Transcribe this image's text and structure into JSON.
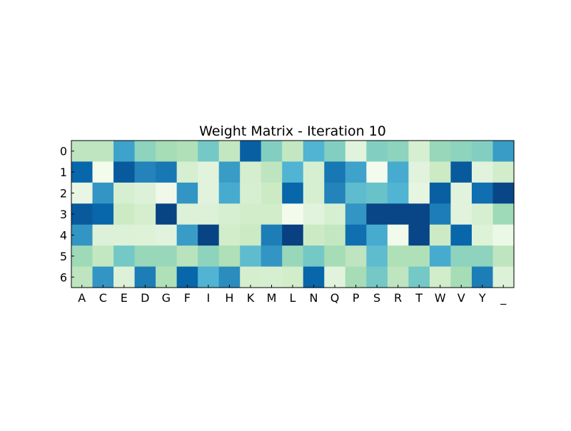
{
  "chart_data": {
    "type": "heatmap",
    "title": "Weight Matrix - Iteration 10",
    "xlabel": "",
    "ylabel": "",
    "x_tick_labels": [
      "A",
      "C",
      "E",
      "D",
      "G",
      "F",
      "I",
      "H",
      "K",
      "M",
      "L",
      "N",
      "Q",
      "P",
      "S",
      "R",
      "T",
      "W",
      "V",
      "Y",
      "_"
    ],
    "y_tick_labels": [
      "0",
      "1",
      "2",
      "3",
      "4",
      "5",
      "6"
    ],
    "colormap": "GnBu",
    "colormap_stops": [
      "#f7fcf0",
      "#e0f3db",
      "#ccebc5",
      "#a8ddb5",
      "#7bccc4",
      "#4eb3d3",
      "#2b8cbe",
      "#0868ac",
      "#084081"
    ],
    "value_range": [
      0,
      1
    ],
    "grid": false,
    "legend": "none",
    "values": [
      [
        0.3,
        0.3,
        0.68,
        0.45,
        0.38,
        0.35,
        0.52,
        0.28,
        0.9,
        0.48,
        0.28,
        0.62,
        0.48,
        0.12,
        0.48,
        0.45,
        0.18,
        0.42,
        0.45,
        0.48,
        0.7
      ],
      [
        0.88,
        0.02,
        0.92,
        0.78,
        0.82,
        0.18,
        0.12,
        0.7,
        0.2,
        0.3,
        0.62,
        0.18,
        0.82,
        0.68,
        0.02,
        0.65,
        0.12,
        0.25,
        0.92,
        0.12,
        0.22
      ],
      [
        0.08,
        0.72,
        0.18,
        0.15,
        0.04,
        0.72,
        0.12,
        0.65,
        0.18,
        0.25,
        0.88,
        0.18,
        0.78,
        0.58,
        0.55,
        0.62,
        0.1,
        0.9,
        0.12,
        0.85,
        0.98
      ],
      [
        0.92,
        0.88,
        0.25,
        0.2,
        0.99,
        0.15,
        0.15,
        0.18,
        0.22,
        0.22,
        0.02,
        0.12,
        0.18,
        0.72,
        0.98,
        0.98,
        0.98,
        0.8,
        0.12,
        0.18,
        0.4
      ],
      [
        0.72,
        0.15,
        0.15,
        0.14,
        0.12,
        0.7,
        0.99,
        0.22,
        0.25,
        0.8,
        1.0,
        0.25,
        0.28,
        0.85,
        0.65,
        0.03,
        0.98,
        0.25,
        0.88,
        0.14,
        0.06
      ],
      [
        0.4,
        0.28,
        0.52,
        0.42,
        0.42,
        0.32,
        0.45,
        0.35,
        0.58,
        0.72,
        0.42,
        0.52,
        0.38,
        0.3,
        0.58,
        0.35,
        0.35,
        0.65,
        0.45,
        0.45,
        0.3
      ],
      [
        0.3,
        0.72,
        0.15,
        0.8,
        0.35,
        0.88,
        0.62,
        0.75,
        0.2,
        0.18,
        0.22,
        0.88,
        0.12,
        0.38,
        0.52,
        0.3,
        0.52,
        0.22,
        0.38,
        0.8,
        0.15
      ]
    ]
  }
}
